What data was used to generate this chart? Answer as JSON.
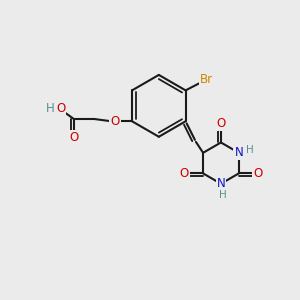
{
  "background_color": "#ebebeb",
  "bond_color": "#1a1a1a",
  "bond_width": 1.5,
  "atom_colors": {
    "C": "#1a1a1a",
    "H": "#5a9090",
    "O": "#cc0000",
    "N": "#1010cc",
    "Br": "#cc8800"
  },
  "font_size": 8.5,
  "figsize": [
    3.0,
    3.0
  ],
  "dpi": 100
}
